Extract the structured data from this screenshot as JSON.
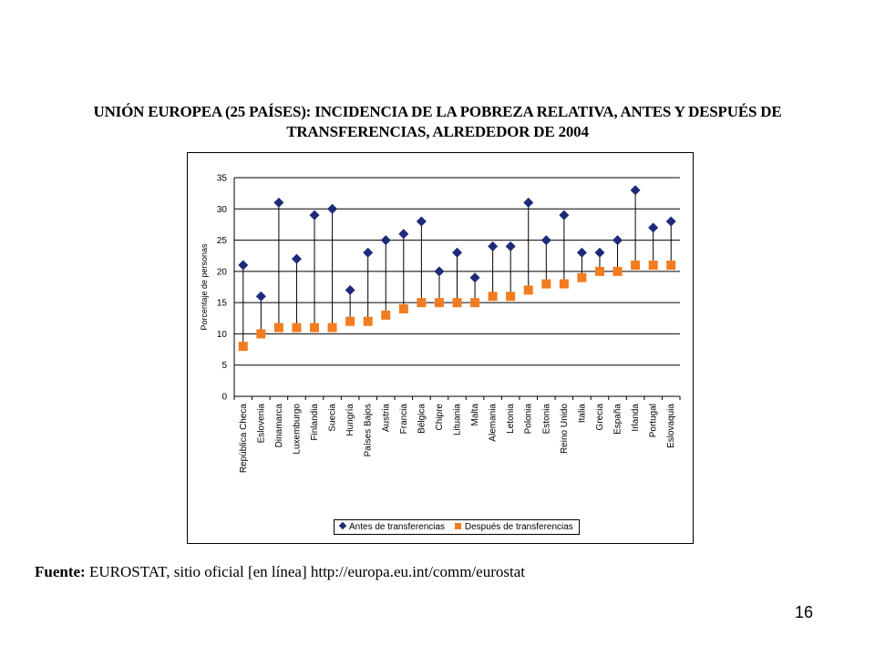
{
  "title": "UNIÓN EUROPEA (25 PAÍSES): INCIDENCIA DE LA POBREZA RELATIVA, ANTES Y DESPUÉS DE TRANSFERENCIAS, ALREDEDOR DE 2004",
  "source": {
    "label": "Fuente:",
    "text": " EUROSTAT, sitio oficial [en línea] http://europa.eu.int/comm/eurostat"
  },
  "page_number": "16",
  "colors": {
    "before": "#1f2a78",
    "after": "#f47c20"
  },
  "chart_data": {
    "type": "scatter",
    "ylabel": "Porcentaje de personas",
    "ylim": [
      0,
      35
    ],
    "yticks": [
      0,
      5,
      10,
      15,
      20,
      25,
      30,
      35
    ],
    "grid": true,
    "legend_position": "bottom",
    "categories": [
      "República Checa",
      "Eslovenia",
      "Dinamarca",
      "Luxemburgo",
      "Finlandia",
      "Suecia",
      "Hungría",
      "Países Bajos",
      "Austria",
      "Francia",
      "Bélgica",
      "Chipre",
      "Lituania",
      "Malta",
      "Alemania",
      "Letonia",
      "Polonia",
      "Estonia",
      "Reino Unido",
      "Italia",
      "Grecia",
      "España",
      "Irlanda",
      "Portugal",
      "Eslovaquia"
    ],
    "series": [
      {
        "name": "Antes de transferencias",
        "marker": "diamond",
        "values": [
          21,
          16,
          31,
          22,
          29,
          30,
          17,
          23,
          25,
          26,
          28,
          20,
          23,
          19,
          24,
          24,
          31,
          25,
          29,
          23,
          23,
          25,
          33,
          27,
          28
        ]
      },
      {
        "name": "Después de transferencias",
        "marker": "square",
        "values": [
          8,
          10,
          11,
          11,
          11,
          11,
          12,
          12,
          13,
          14,
          15,
          15,
          15,
          15,
          16,
          16,
          17,
          18,
          18,
          19,
          20,
          20,
          21,
          21,
          21
        ]
      }
    ]
  }
}
